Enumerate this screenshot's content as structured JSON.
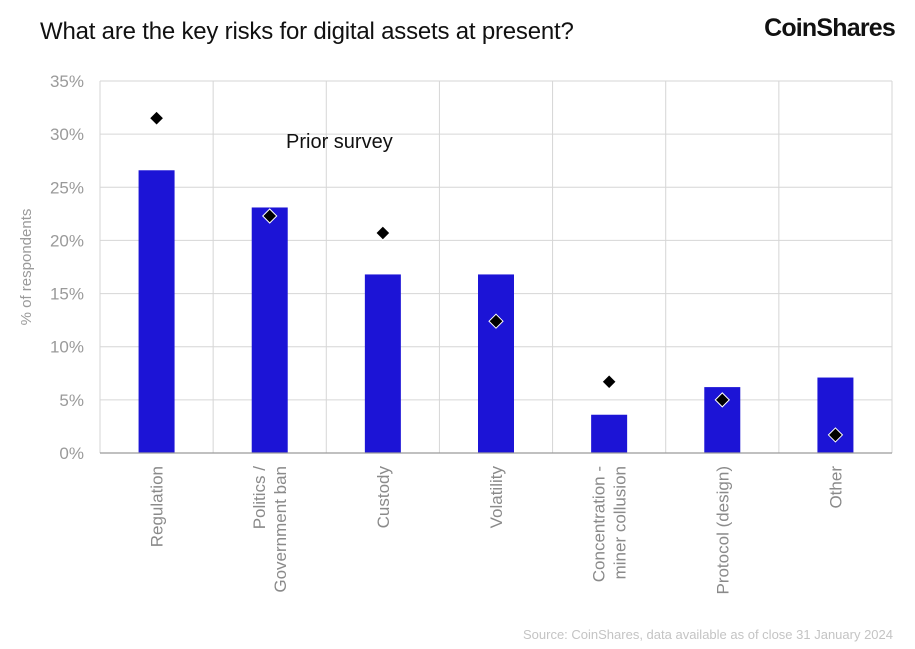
{
  "header": {
    "title": "What are the key risks for digital assets at present?",
    "brand": "CoinShares"
  },
  "footer": {
    "source": "Source: CoinShares, data available as of close 31 January 2024"
  },
  "chart_data": {
    "type": "bar",
    "title": "What are the key risks for digital assets at present?",
    "xlabel": "",
    "ylabel": "% of respondents",
    "ylim": [
      0,
      35
    ],
    "yticks": [
      0,
      5,
      10,
      15,
      20,
      25,
      30,
      35
    ],
    "ytick_labels": [
      "0%",
      "5%",
      "10%",
      "15%",
      "20%",
      "25%",
      "30%",
      "35%"
    ],
    "categories": [
      [
        "Regulation"
      ],
      [
        "Politics /",
        "Government ban"
      ],
      [
        "Custody"
      ],
      [
        "Volatility"
      ],
      [
        "Concentration -",
        "miner collusion"
      ],
      [
        "Protocol (design)"
      ],
      [
        "Other"
      ]
    ],
    "series": [
      {
        "kind": "bar",
        "color": "#1c14d6",
        "values": [
          26.6,
          23.1,
          16.8,
          16.8,
          3.6,
          6.2,
          7.1
        ]
      },
      {
        "kind": "marker",
        "marker": "diamond",
        "color": "#000000",
        "values": [
          31.5,
          22.3,
          20.7,
          12.4,
          6.7,
          5.0,
          1.7
        ]
      }
    ],
    "annotation": "Prior survey",
    "grid": true,
    "legend": "none"
  }
}
